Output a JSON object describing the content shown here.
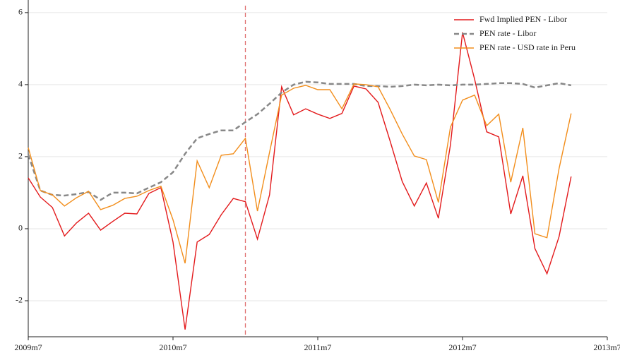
{
  "chart_data": {
    "type": "line",
    "x": [
      "2009m7",
      "2009m8",
      "2009m9",
      "2009m10",
      "2009m11",
      "2009m12",
      "2010m1",
      "2010m2",
      "2010m3",
      "2010m4",
      "2010m5",
      "2010m6",
      "2010m7",
      "2010m8",
      "2010m9",
      "2010m10",
      "2010m11",
      "2010m12",
      "2011m1",
      "2011m2",
      "2011m3",
      "2011m4",
      "2011m5",
      "2011m6",
      "2011m7",
      "2011m8",
      "2011m9",
      "2011m10",
      "2011m11",
      "2011m12",
      "2012m1",
      "2012m2",
      "2012m3",
      "2012m4",
      "2012m5",
      "2012m6",
      "2012m7",
      "2012m8",
      "2012m9",
      "2012m10",
      "2012m11",
      "2012m12",
      "2013m1",
      "2013m2",
      "2013m3",
      "2013m4"
    ],
    "series": [
      {
        "name": "Fwd Implied PEN - Libor",
        "color": "#e31a1c",
        "dash": false,
        "values": [
          1.41,
          0.88,
          0.59,
          -0.2,
          0.16,
          0.43,
          -0.04,
          0.2,
          0.43,
          0.41,
          0.98,
          1.14,
          -0.37,
          -2.8,
          -0.37,
          -0.16,
          0.39,
          0.84,
          0.75,
          -0.29,
          0.94,
          3.94,
          3.16,
          3.33,
          3.18,
          3.06,
          3.2,
          3.96,
          3.88,
          3.51,
          2.43,
          1.31,
          0.63,
          1.27,
          0.29,
          2.33,
          5.45,
          4.15,
          2.69,
          2.55,
          0.41,
          1.47,
          -0.55,
          -1.25,
          -0.22,
          1.45
        ]
      },
      {
        "name": "PEN rate - Libor",
        "color": "#888888",
        "dash": true,
        "values": [
          2.06,
          1.06,
          0.94,
          0.92,
          0.96,
          1.02,
          0.8,
          1.0,
          1.0,
          0.98,
          1.14,
          1.29,
          1.57,
          2.08,
          2.51,
          2.63,
          2.73,
          2.73,
          2.96,
          3.18,
          3.47,
          3.78,
          4.0,
          4.08,
          4.06,
          4.02,
          4.02,
          4.02,
          3.96,
          3.96,
          3.94,
          3.96,
          4.0,
          3.98,
          4.0,
          3.98,
          4.0,
          4.0,
          4.02,
          4.04,
          4.04,
          4.02,
          3.92,
          3.98,
          4.04,
          3.98
        ]
      },
      {
        "name": "PEN rate - USD rate in Peru",
        "color": "#f28e1c",
        "dash": false,
        "values": [
          2.25,
          1.06,
          0.94,
          0.63,
          0.86,
          1.04,
          0.53,
          0.65,
          0.84,
          0.9,
          1.06,
          1.18,
          0.25,
          -0.96,
          1.88,
          1.14,
          2.04,
          2.08,
          2.51,
          0.49,
          2.12,
          3.71,
          3.9,
          3.98,
          3.86,
          3.86,
          3.33,
          4.02,
          4.0,
          3.94,
          3.31,
          2.63,
          2.02,
          1.92,
          0.73,
          2.82,
          3.57,
          3.71,
          2.86,
          3.18,
          1.29,
          2.8,
          -0.14,
          -0.25,
          1.67,
          3.2
        ]
      }
    ],
    "xlim": [
      "2009m7",
      "2013m7"
    ],
    "xticks": [
      "2009m7",
      "2010m7",
      "2011m7",
      "2012m7",
      "2013m7"
    ],
    "ylim": [
      -3,
      6.35
    ],
    "yticks": [
      -2,
      0,
      2,
      4,
      6
    ],
    "vline": "2011m1",
    "vline_color": "#e07070",
    "grid": true,
    "legend": "top-right"
  }
}
